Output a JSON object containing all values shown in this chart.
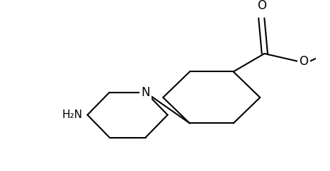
{
  "background_color": "#ffffff",
  "line_color": "#000000",
  "line_width": 1.5,
  "text_color": "#000000",
  "figsize": [
    4.66,
    2.42
  ],
  "dpi": 100,
  "font_size": 11,
  "N_label": "N",
  "H2N_label": "H₂N",
  "O_label": "O",
  "O2_label": "O"
}
